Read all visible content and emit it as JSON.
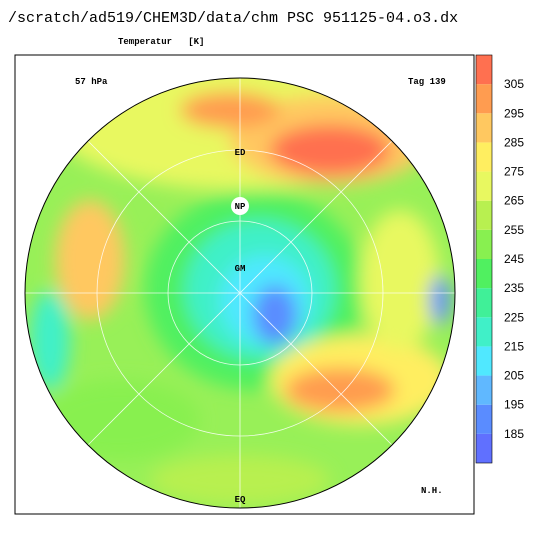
{
  "header": {
    "title": "/scratch/ad519/CHEM3D/data/chm PSC 951125-04.o3.dx",
    "variable": "Temperatur   [K]"
  },
  "map": {
    "level": "57 hPa",
    "day": "Tag 139",
    "labels": [
      "ED",
      "NP",
      "GM",
      "EQ"
    ],
    "hemisphere": "N.H."
  },
  "colorbar": {
    "clim": [
      175,
      315
    ],
    "ticks": [
      185,
      195,
      205,
      215,
      225,
      235,
      245,
      255,
      265,
      275,
      285,
      295,
      305
    ],
    "colors": [
      "#6070ff",
      "#5a8cff",
      "#60b8ff",
      "#50e8ff",
      "#40f0c8",
      "#40f098",
      "#50f060",
      "#88f050",
      "#b8f050",
      "#e8f860",
      "#ffee60",
      "#ffc860",
      "#ff9c50",
      "#ff7050"
    ]
  }
}
